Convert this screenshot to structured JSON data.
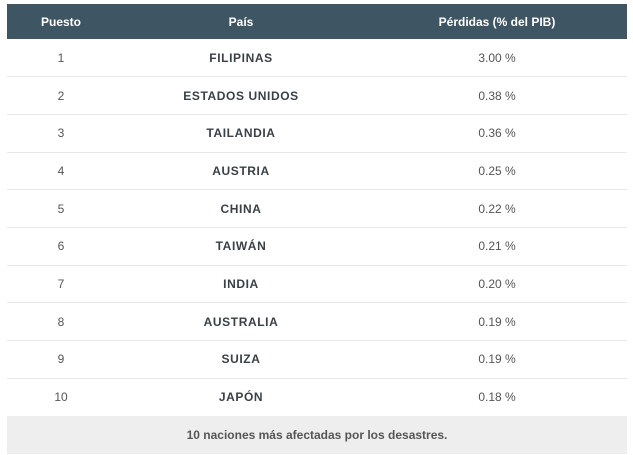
{
  "table": {
    "headers": [
      "Puesto",
      "País",
      "Pérdidas (% del PIB)"
    ],
    "rows": [
      {
        "rank": "1",
        "country": "FILIPINAS",
        "loss": "3.00 %"
      },
      {
        "rank": "2",
        "country": "ESTADOS UNIDOS",
        "loss": "0.38 %"
      },
      {
        "rank": "3",
        "country": "TAILANDIA",
        "loss": "0.36 %"
      },
      {
        "rank": "4",
        "country": "AUSTRIA",
        "loss": "0.25 %"
      },
      {
        "rank": "5",
        "country": "CHINA",
        "loss": "0.22 %"
      },
      {
        "rank": "6",
        "country": "TAIWÁN",
        "loss": "0.21 %"
      },
      {
        "rank": "7",
        "country": "INDIA",
        "loss": "0.20 %"
      },
      {
        "rank": "8",
        "country": "AUSTRALIA",
        "loss": "0.19 %"
      },
      {
        "rank": "9",
        "country": "SUIZA",
        "loss": "0.19 %"
      },
      {
        "rank": "10",
        "country": "JAPÓN",
        "loss": "0.18 %"
      }
    ],
    "caption": "10 naciones más afectadas por los desastres."
  },
  "colors": {
    "header_bg": "#3e5563",
    "caption_bg": "#eeeeee"
  }
}
